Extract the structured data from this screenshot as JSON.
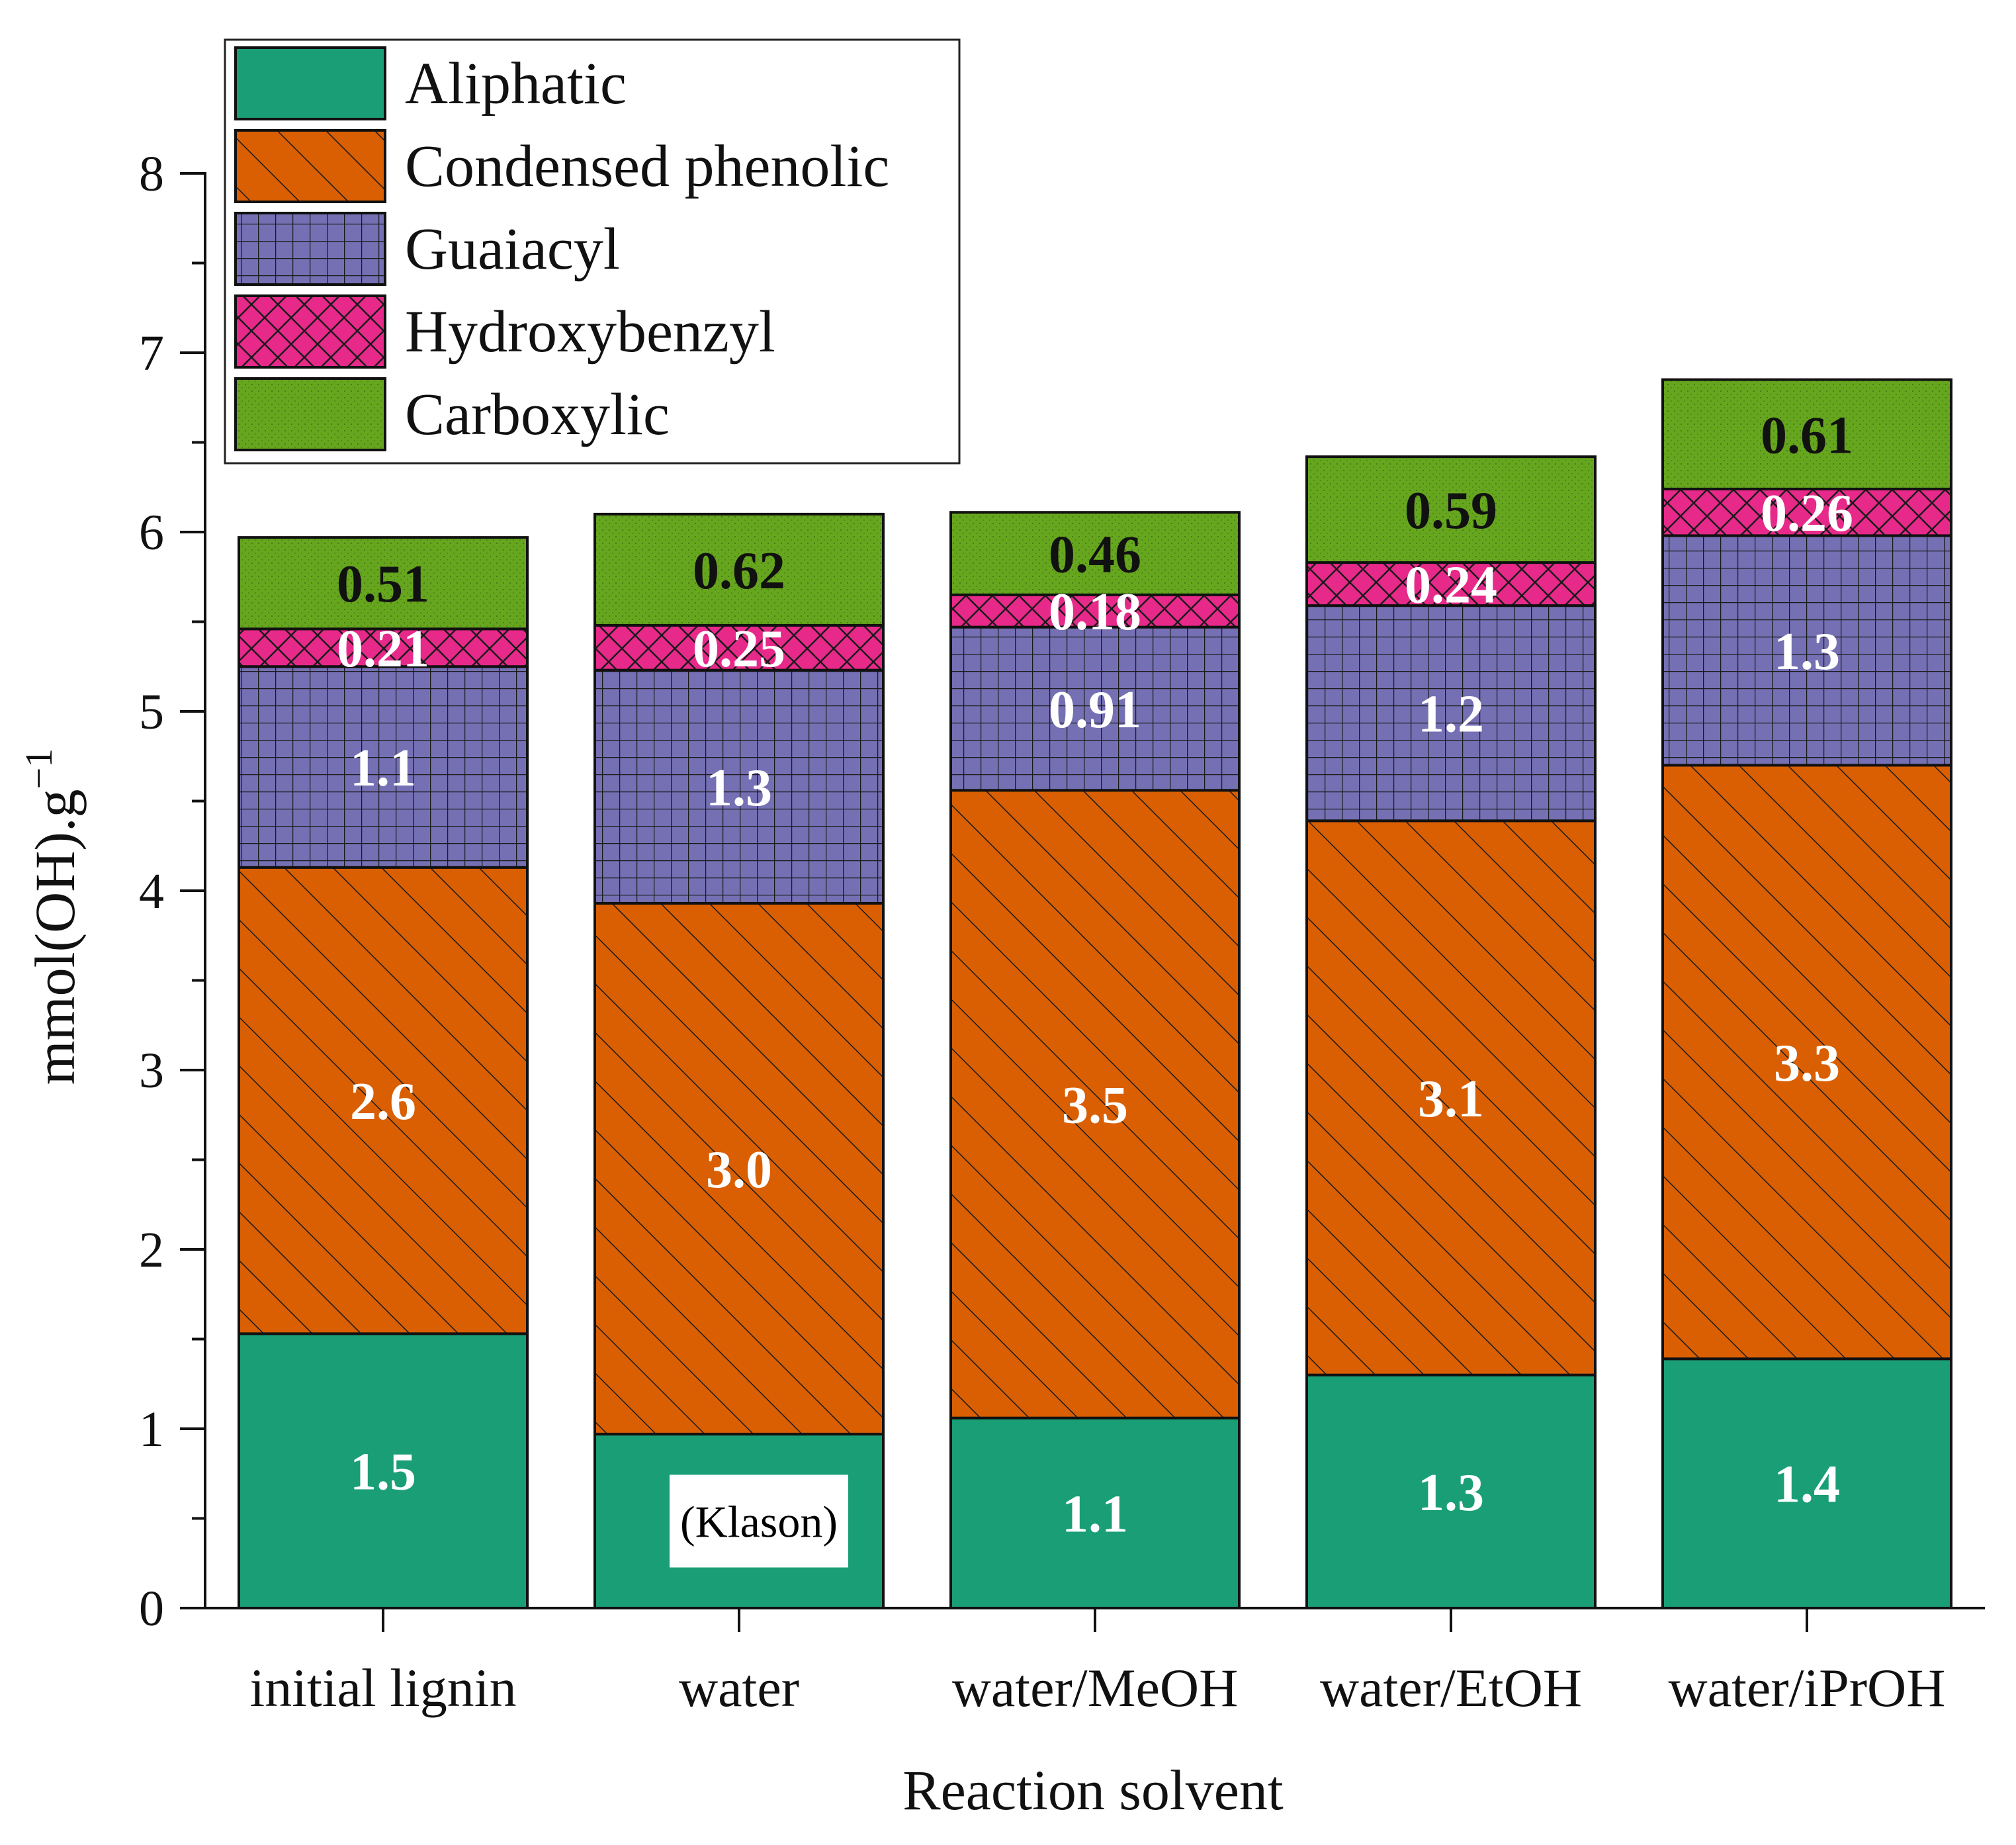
{
  "chart_data": {
    "type": "bar",
    "stacked": true,
    "title": "",
    "xlabel": "Reaction solvent",
    "ylabel": "mmol(OH).g",
    "ylabel_superscript": "−1",
    "ylim": [
      0,
      8
    ],
    "yticks": [
      "0",
      "1",
      "2",
      "3",
      "4",
      "5",
      "6",
      "7",
      "8"
    ],
    "categories": [
      "initial lignin",
      "water",
      "water/MeOH",
      "water/EtOH",
      "water/iPrOH"
    ],
    "series": [
      {
        "name": "Aliphatic",
        "color": "#1a9e76",
        "pattern": "solid",
        "values": [
          1.53,
          0.97,
          1.06,
          1.3,
          1.39
        ],
        "labels": [
          "1.5",
          "",
          "1.1",
          "1.3",
          "1.4"
        ]
      },
      {
        "name": "Condensed phenolic",
        "color": "#d95f02",
        "pattern": "diagonal",
        "values": [
          2.6,
          2.96,
          3.5,
          3.09,
          3.31
        ],
        "labels": [
          "2.6",
          "3.0",
          "3.5",
          "3.1",
          "3.3"
        ]
      },
      {
        "name": "Guaiacyl",
        "color": "#7570b3",
        "pattern": "grid",
        "values": [
          1.12,
          1.3,
          0.91,
          1.2,
          1.28
        ],
        "labels": [
          "1.1",
          "1.3",
          "0.91",
          "1.2",
          "1.3"
        ]
      },
      {
        "name": "Hydroxybenzyl",
        "color": "#e7298a",
        "pattern": "crosshatch",
        "values": [
          0.21,
          0.25,
          0.18,
          0.24,
          0.26
        ],
        "labels": [
          "0.21",
          "0.25",
          "0.18",
          "0.24",
          "0.26"
        ]
      },
      {
        "name": "Carboxylic",
        "color": "#66a61e",
        "pattern": "dots",
        "values": [
          0.51,
          0.62,
          0.46,
          0.59,
          0.61
        ],
        "labels": [
          "0.51",
          "0.62",
          "0.46",
          "0.59",
          "0.61"
        ]
      }
    ],
    "label_colors": {
      "light": "#ffffff",
      "dark": "#111111"
    },
    "annotations": [
      {
        "text": "(Klason)",
        "category": "water",
        "series": "Aliphatic"
      }
    ],
    "legend": "top-left",
    "grid": false
  }
}
